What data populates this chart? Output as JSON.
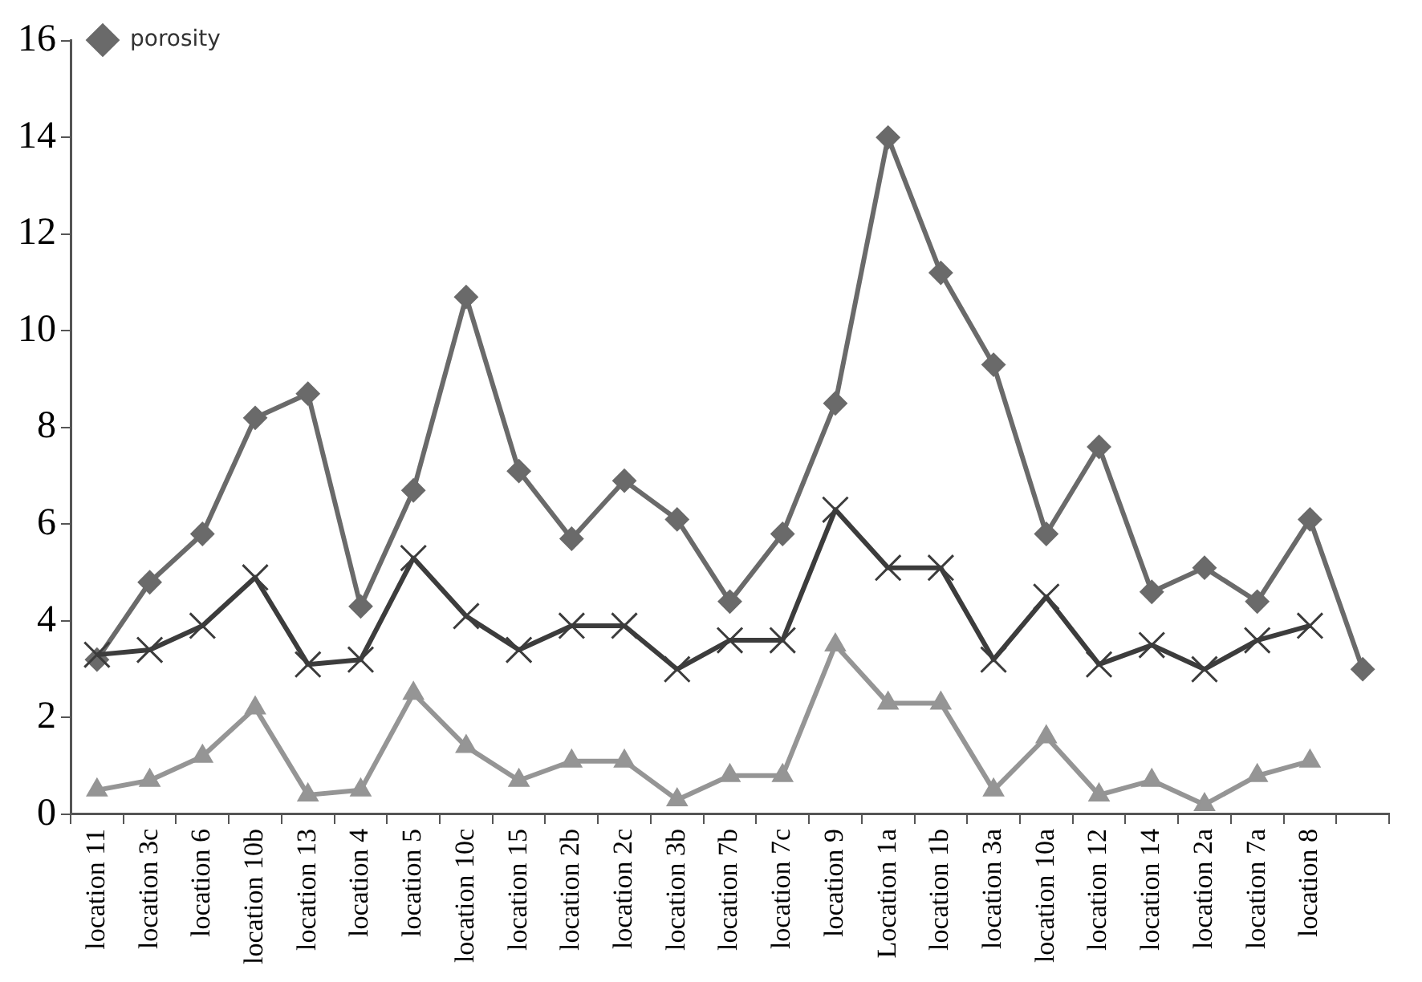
{
  "chart_data": {
    "type": "line",
    "categories": [
      "location 11",
      "location 3c",
      "location 6",
      "location 10b",
      "location 13",
      "location 4",
      "location 5",
      "location 10c",
      "location 15",
      "location 2b",
      "location 2c",
      "location 3b",
      "location 7b",
      "location 7c",
      "location 9",
      "Location 1a",
      "location 1b",
      "location 3a",
      "location 10a",
      "location 12",
      "location 14",
      "location 2a",
      "location 7a",
      "location 8",
      null
    ],
    "series": [
      {
        "name": "porosity",
        "color": "#6a6a6a",
        "marker": "diamond",
        "values": [
          3.2,
          4.8,
          5.8,
          8.2,
          8.7,
          4.3,
          6.7,
          10.7,
          7.1,
          5.7,
          6.9,
          6.1,
          4.4,
          5.8,
          8.5,
          14.0,
          11.2,
          9.3,
          5.8,
          7.6,
          4.6,
          5.1,
          4.4,
          6.1,
          3.0
        ]
      },
      {
        "color": "#3c3c3c",
        "marker": "cross",
        "values": [
          3.3,
          3.4,
          3.9,
          4.9,
          3.1,
          3.2,
          5.3,
          4.1,
          3.4,
          3.9,
          3.9,
          3.0,
          3.6,
          3.6,
          6.3,
          5.1,
          5.1,
          3.2,
          4.5,
          3.1,
          3.5,
          3.0,
          3.6,
          3.9,
          null
        ]
      },
      {
        "color": "#959595",
        "marker": "triangle",
        "values": [
          0.5,
          0.7,
          1.2,
          2.2,
          0.4,
          0.5,
          2.5,
          1.4,
          0.7,
          1.1,
          1.1,
          0.3,
          0.8,
          0.8,
          3.5,
          2.3,
          2.3,
          0.5,
          1.6,
          0.4,
          0.7,
          0.2,
          0.8,
          1.1,
          null
        ]
      }
    ],
    "ylim": [
      0,
      16
    ],
    "yticks": [
      0,
      2,
      4,
      6,
      8,
      10,
      12,
      14,
      16
    ],
    "grid": false,
    "legend": "top left",
    "line_style": "solid"
  }
}
